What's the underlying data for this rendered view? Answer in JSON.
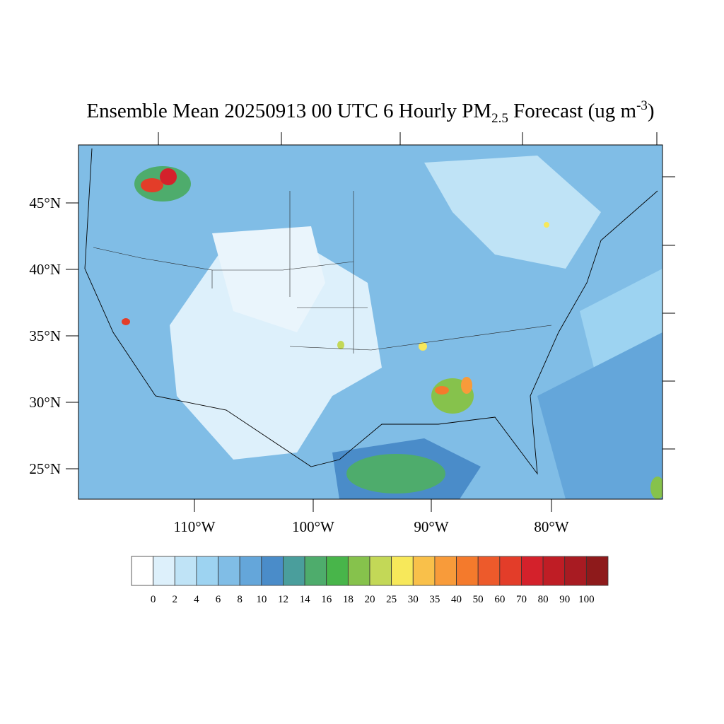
{
  "header": {
    "title_main": "Ensemble Mean 20250913 00 UTC 6 Hourly PM",
    "title_sub": "2.5",
    "title_rest": " Forecast (ug m",
    "title_sup": "-3",
    "title_end": ")"
  },
  "map": {
    "lat_labels": [
      "45°N",
      "40°N",
      "35°N",
      "30°N",
      "25°N"
    ],
    "lon_labels": [
      "110°W",
      "100°W",
      "90°W",
      "80°W"
    ]
  },
  "colorbar": {
    "labels": [
      "0",
      "2",
      "4",
      "6",
      "8",
      "10",
      "12",
      "14",
      "16",
      "18",
      "20",
      "25",
      "30",
      "35",
      "40",
      "50",
      "60",
      "70",
      "80",
      "90",
      "100"
    ],
    "colors": [
      "#ffffff",
      "#ddf0fb",
      "#bfe3f6",
      "#9dd3f1",
      "#80bde6",
      "#64a6da",
      "#4a8cc9",
      "#4a9e9c",
      "#4eac6c",
      "#48b54a",
      "#86c24c",
      "#c3d857",
      "#f7e85a",
      "#f9c04a",
      "#f89b3a",
      "#f47a2c",
      "#ed5a2b",
      "#e33d29",
      "#d4212b",
      "#bf1d25",
      "#a81b22",
      "#8e1a1b"
    ]
  }
}
